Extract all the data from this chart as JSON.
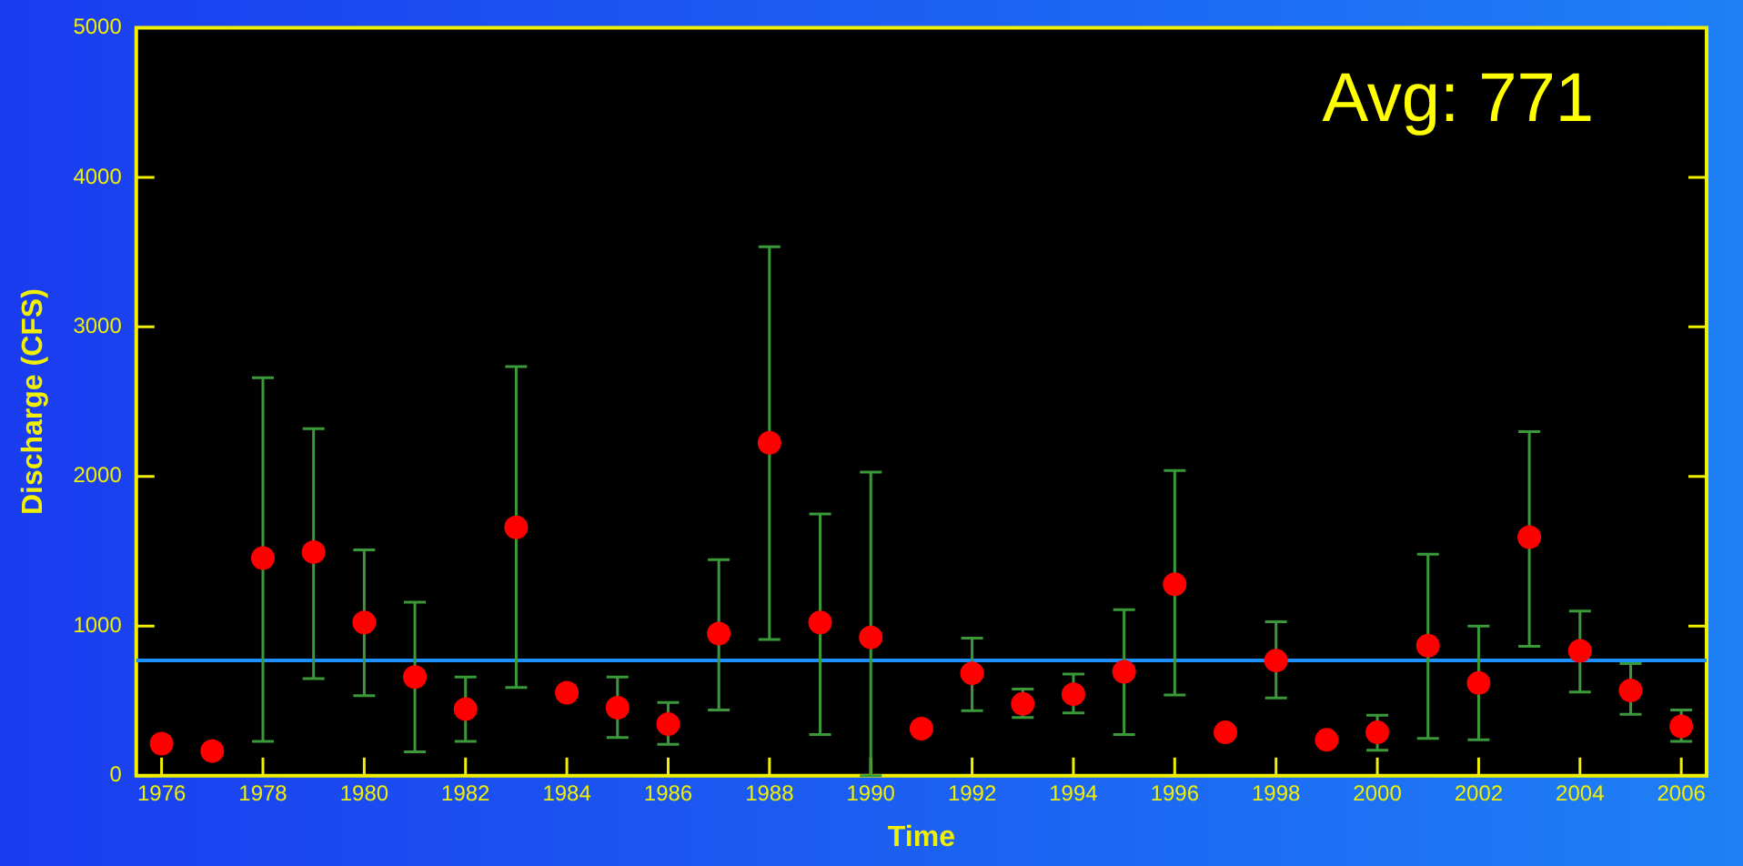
{
  "chart_data": {
    "type": "scatter",
    "xlabel": "Time",
    "ylabel": "Discharge (CFS)",
    "legend": false,
    "grid": false,
    "marker": "circle",
    "x": [
      1976,
      1977,
      1978,
      1979,
      1980,
      1981,
      1982,
      1983,
      1984,
      1985,
      1986,
      1987,
      1988,
      1989,
      1990,
      1991,
      1992,
      1993,
      1994,
      1995,
      1996,
      1997,
      1998,
      1999,
      2000,
      2001,
      2002,
      2003,
      2004,
      2005,
      2006
    ],
    "series": [
      {
        "color": "#ff0000",
        "values": [
          215,
          165,
          1455,
          1495,
          1025,
          660,
          445,
          1660,
          555,
          455,
          345,
          950,
          2225,
          1025,
          925,
          315,
          685,
          480,
          545,
          695,
          1280,
          290,
          770,
          240,
          290,
          870,
          620,
          1595,
          835,
          570,
          330
        ],
        "errors": [
          null,
          null,
          [
            230,
            2660
          ],
          [
            650,
            2320
          ],
          [
            535,
            1510
          ],
          [
            160,
            1160
          ],
          [
            230,
            660
          ],
          [
            590,
            2735
          ],
          null,
          [
            255,
            660
          ],
          [
            210,
            490
          ],
          [
            440,
            1445
          ],
          [
            910,
            3535
          ],
          [
            275,
            1750
          ],
          [
            0,
            2030
          ],
          null,
          [
            435,
            920
          ],
          [
            390,
            580
          ],
          [
            420,
            680
          ],
          [
            275,
            1110
          ],
          [
            540,
            2040
          ],
          null,
          [
            520,
            1030
          ],
          null,
          [
            170,
            405
          ],
          [
            250,
            1480
          ],
          [
            240,
            1000
          ],
          [
            865,
            2300
          ],
          [
            560,
            1100
          ],
          [
            410,
            750
          ],
          [
            230,
            440
          ]
        ]
      }
    ],
    "xlim": [
      1975.5,
      2006.5
    ],
    "xticks": [
      1976,
      1978,
      1980,
      1982,
      1984,
      1986,
      1988,
      1990,
      1992,
      1994,
      1996,
      1998,
      2000,
      2002,
      2004,
      2006
    ],
    "ylim": [
      0,
      5000
    ],
    "yticks": [
      0,
      1000,
      2000,
      3000,
      4000,
      5000
    ],
    "annotations": [
      "Avg: 771"
    ],
    "ref_lines": [
      {
        "axis": "y",
        "value": 771,
        "color": "#1e90ff"
      }
    ]
  }
}
